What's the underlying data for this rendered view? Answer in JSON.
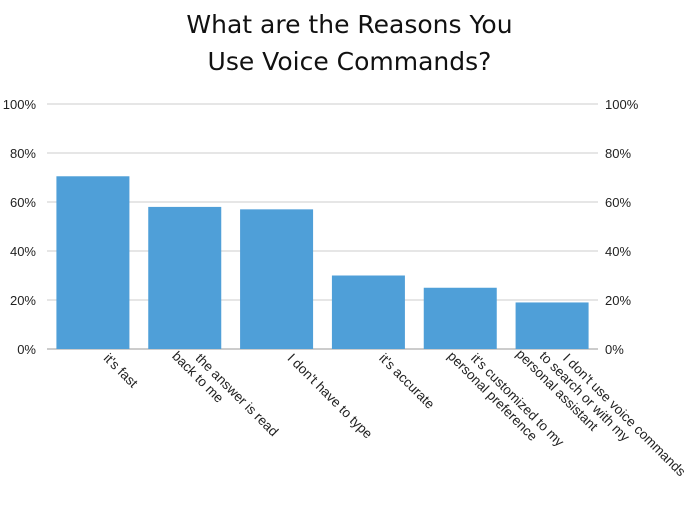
{
  "chart_data": {
    "type": "bar",
    "title_line1": "What are the Reasons You",
    "title_line2": "Use Voice Commands?",
    "categories": [
      [
        "it's fast"
      ],
      [
        "the answer is read",
        "back to me"
      ],
      [
        "I don't have to type"
      ],
      [
        "it's accurate"
      ],
      [
        "it's customized to my",
        "personal preference"
      ],
      [
        "I don't use voice commands",
        "to search or with my",
        "personal assistant"
      ]
    ],
    "values": [
      70.5,
      58,
      57,
      30,
      25,
      19
    ],
    "yticks": [
      "0%",
      "20%",
      "40%",
      "60%",
      "80%",
      "100%"
    ],
    "ylim": [
      0,
      100
    ],
    "grid": true,
    "bar_color": "#4f9fd8",
    "grid_color": "#cccccc",
    "axis_color": "#999999"
  }
}
